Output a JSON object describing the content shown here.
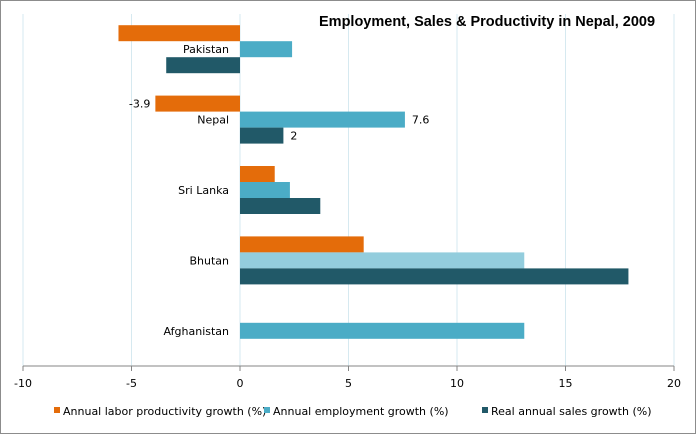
{
  "chart_data": {
    "type": "bar",
    "orientation": "horizontal",
    "title": "Employment,  Sales & Productivity in Nepal, 2009",
    "xlabel": "",
    "ylabel": "",
    "xlim": [
      -10,
      20
    ],
    "x_ticks": [
      -10,
      -5,
      0,
      5,
      10,
      15,
      20
    ],
    "grid": true,
    "legend_position": "bottom",
    "categories": [
      "Pakistan",
      "Nepal",
      "Sri Lanka",
      "Bhutan",
      "Afghanistan"
    ],
    "series": [
      {
        "name": "Annual labor productivity growth (%)",
        "color": "#E46C0A",
        "values": [
          -5.6,
          -3.9,
          1.6,
          5.7,
          null
        ]
      },
      {
        "name": "Annual employment growth (%)",
        "color": "#4BACC6",
        "values": [
          2.4,
          7.6,
          2.3,
          13.1,
          13.1
        ],
        "highlight": {
          "category": "Bhutan",
          "color": "#93CDDD"
        }
      },
      {
        "name": "Real annual sales growth (%)",
        "color": "#215968",
        "values": [
          -3.4,
          2,
          3.7,
          17.9,
          null
        ]
      }
    ],
    "data_labels": [
      {
        "category": "Nepal",
        "series": 0,
        "text": "-3.9"
      },
      {
        "category": "Nepal",
        "series": 1,
        "text": "7.6"
      },
      {
        "category": "Nepal",
        "series": 2,
        "text": "2"
      }
    ]
  }
}
